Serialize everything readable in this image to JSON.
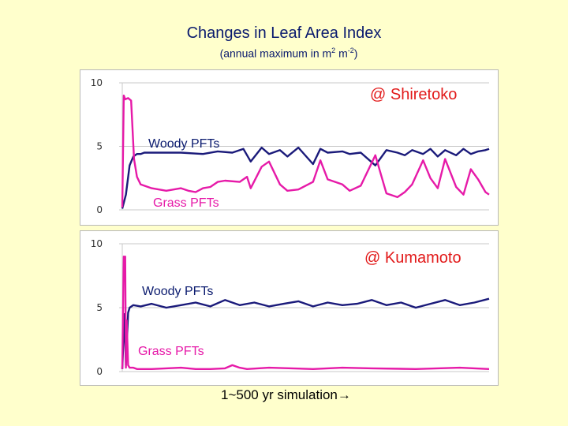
{
  "title": "Changes in Leaf Area Index",
  "subtitle": {
    "main": "(annual maximum in m",
    "exp1": "2",
    "mid": " m",
    "exp2": "-2",
    "end": ")"
  },
  "footer": {
    "text": "1~500 yr simulation",
    "arrow": "→"
  },
  "colors": {
    "woody": "#1a1a7a",
    "grass": "#e61aa8",
    "location": "#e21a1a"
  },
  "chart_data": [
    {
      "type": "line",
      "title": "@ Shiretoko",
      "ylim": [
        0,
        10
      ],
      "yticks": [
        "10",
        "5",
        "0"
      ],
      "grid": true,
      "annotations": {
        "woody": "Woody PFTs",
        "grass": "Grass PFTs"
      },
      "series": [
        {
          "name": "Woody PFTs",
          "x": [
            0,
            5,
            10,
            15,
            20,
            25,
            30,
            50,
            80,
            110,
            130,
            150,
            165,
            175,
            190,
            200,
            215,
            225,
            240,
            260,
            270,
            280,
            300,
            310,
            325,
            345,
            360,
            375,
            385,
            395,
            410,
            420,
            430,
            440,
            455,
            465,
            475,
            485,
            495,
            500
          ],
          "y": [
            0.1,
            1.2,
            3.5,
            4.2,
            4.4,
            4.4,
            4.5,
            4.5,
            4.5,
            4.4,
            4.6,
            4.5,
            4.8,
            3.8,
            4.9,
            4.4,
            4.7,
            4.2,
            4.9,
            3.6,
            4.8,
            4.5,
            4.6,
            4.4,
            4.5,
            3.5,
            4.7,
            4.5,
            4.3,
            4.7,
            4.4,
            4.8,
            4.2,
            4.7,
            4.3,
            4.8,
            4.4,
            4.6,
            4.7,
            4.8
          ]
        },
        {
          "name": "Grass PFTs",
          "x": [
            0,
            2,
            4,
            8,
            12,
            16,
            20,
            25,
            30,
            40,
            50,
            60,
            70,
            80,
            90,
            100,
            110,
            120,
            130,
            140,
            160,
            170,
            175,
            190,
            200,
            215,
            225,
            240,
            260,
            270,
            280,
            300,
            310,
            325,
            345,
            360,
            375,
            385,
            395,
            410,
            420,
            430,
            440,
            455,
            465,
            475,
            485,
            495,
            500
          ],
          "y": [
            0.2,
            9.0,
            8.7,
            8.8,
            8.6,
            4.0,
            2.6,
            2.0,
            1.9,
            1.7,
            1.6,
            1.5,
            1.6,
            1.7,
            1.5,
            1.4,
            1.7,
            1.8,
            2.2,
            2.3,
            2.2,
            2.6,
            1.7,
            3.4,
            3.8,
            2.0,
            1.5,
            1.6,
            2.2,
            3.9,
            2.4,
            2.0,
            1.5,
            1.9,
            4.3,
            1.3,
            1.0,
            1.4,
            2.0,
            3.9,
            2.5,
            1.7,
            4.0,
            1.8,
            1.2,
            3.2,
            2.4,
            1.4,
            1.2
          ]
        }
      ]
    },
    {
      "type": "line",
      "title": "@ Kumamoto",
      "ylim": [
        0,
        10
      ],
      "yticks": [
        "10",
        "5",
        "0"
      ],
      "grid": true,
      "annotations": {
        "woody": "Woody PFTs",
        "grass": "Grass PFTs"
      },
      "series": [
        {
          "name": "Woody PFTs",
          "x": [
            0,
            3,
            5,
            8,
            10,
            15,
            25,
            40,
            60,
            80,
            100,
            120,
            140,
            160,
            180,
            200,
            220,
            240,
            260,
            280,
            300,
            320,
            340,
            360,
            380,
            400,
            420,
            440,
            460,
            480,
            500
          ],
          "y": [
            0.2,
            4.5,
            0.5,
            4.6,
            5.0,
            5.2,
            5.1,
            5.3,
            5.0,
            5.2,
            5.4,
            5.1,
            5.6,
            5.2,
            5.4,
            5.1,
            5.3,
            5.5,
            5.1,
            5.4,
            5.2,
            5.3,
            5.6,
            5.2,
            5.4,
            5.0,
            5.3,
            5.6,
            5.2,
            5.4,
            5.7
          ]
        },
        {
          "name": "Grass PFTs",
          "x": [
            0,
            2,
            3,
            4,
            5,
            6,
            8,
            10,
            15,
            20,
            40,
            60,
            80,
            100,
            120,
            140,
            150,
            160,
            170,
            200,
            260,
            300,
            340,
            400,
            460,
            500
          ],
          "y": [
            0.2,
            9.0,
            8.5,
            9.0,
            0.3,
            4.0,
            0.5,
            0.3,
            0.3,
            0.2,
            0.2,
            0.25,
            0.3,
            0.2,
            0.2,
            0.25,
            0.5,
            0.3,
            0.2,
            0.3,
            0.2,
            0.3,
            0.25,
            0.2,
            0.3,
            0.2
          ]
        }
      ]
    }
  ]
}
